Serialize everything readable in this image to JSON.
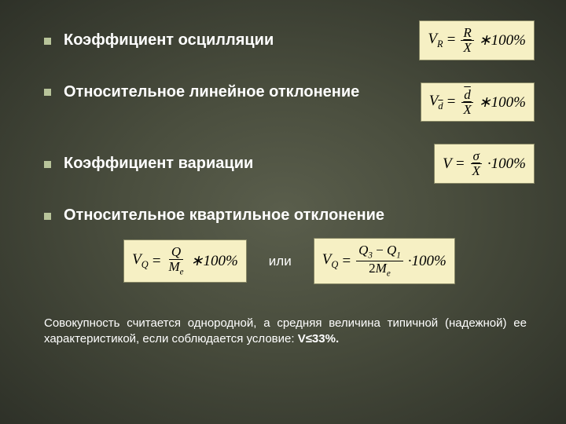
{
  "background": {
    "gradient_center": "#5a5e4c",
    "gradient_mid": "#4a4e3e",
    "gradient_edge": "#2e3128"
  },
  "bullet_color": "#b8c49a",
  "formula_bg": "#f6f0c4",
  "formula_border": "#888866",
  "text_color": "#ffffff",
  "items": [
    {
      "label": "Коэффициент осцилляции",
      "formula": {
        "lhs": "V",
        "lhs_sub": "R",
        "num": "R",
        "den_bar": "X",
        "tail": "∗100%"
      }
    },
    {
      "label": "Относительное линейное отклонение",
      "formula": {
        "lhs": "V",
        "lhs_sub_bar": "d",
        "num_bar": "d",
        "den_bar": "X",
        "tail": "∗100%"
      }
    },
    {
      "label": "Коэффициент вариации",
      "formula": {
        "lhs": "V",
        "num": "σ",
        "den_bar": "X",
        "tail": "·100%"
      }
    },
    {
      "label": "Относительное квартильное отклонение"
    }
  ],
  "quartile": {
    "left": {
      "lhs": "V",
      "lhs_sub": "Q",
      "num": "Q",
      "den": "M",
      "den_sub": "e",
      "tail": "∗100%"
    },
    "sep": "или",
    "right": {
      "lhs": "V",
      "lhs_sub": "Q",
      "num_l": "Q",
      "num_l_sub": "3",
      "minus": "−",
      "num_r": "Q",
      "num_r_sub": "1",
      "den_pre": "2",
      "den": "M",
      "den_sub": "e",
      "tail": "·100%"
    }
  },
  "footer": {
    "text": "Совокупность считается однородной, а средняя величина типичной (надежной) ее характеристикой, если соблюдается условие: ",
    "condition": "V≤33%."
  }
}
